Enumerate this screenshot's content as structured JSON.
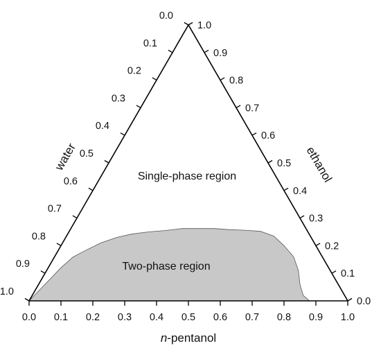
{
  "chart_data": {
    "type": "ternary",
    "axes": {
      "bottom": {
        "label": "n-pentanol",
        "label_prefix": "n",
        "label_suffix": "-pentanol",
        "ticks": [
          "0.0",
          "0.1",
          "0.2",
          "0.3",
          "0.4",
          "0.5",
          "0.6",
          "0.7",
          "0.8",
          "0.9",
          "1.0"
        ]
      },
      "left": {
        "label": "water",
        "ticks": [
          "0.0",
          "0.1",
          "0.2",
          "0.3",
          "0.4",
          "0.5",
          "0.6",
          "0.7",
          "0.8",
          "0.9",
          "1.0"
        ]
      },
      "right": {
        "label": "ethanol",
        "ticks": [
          "0.0",
          "0.1",
          "0.2",
          "0.3",
          "0.4",
          "0.5",
          "0.6",
          "0.7",
          "0.8",
          "0.9",
          "1.0"
        ]
      }
    },
    "regions": [
      {
        "label": "Single-phase region",
        "fill": "none"
      },
      {
        "label": "Two-phase region",
        "fill": "#c8c8c8"
      }
    ],
    "binodal_curve": [
      {
        "pentanol": 0.0,
        "ethanol": 0.0
      },
      {
        "pentanol": 0.02,
        "ethanol": 0.06
      },
      {
        "pentanol": 0.04,
        "ethanol": 0.12
      },
      {
        "pentanol": 0.058,
        "ethanol": 0.158
      },
      {
        "pentanol": 0.08,
        "ethanol": 0.178
      },
      {
        "pentanol": 0.12,
        "ethanol": 0.21
      },
      {
        "pentanol": 0.16,
        "ethanol": 0.23
      },
      {
        "pentanol": 0.2,
        "ethanol": 0.242
      },
      {
        "pentanol": 0.25,
        "ethanol": 0.25
      },
      {
        "pentanol": 0.3,
        "ethanol": 0.255
      },
      {
        "pentanol": 0.35,
        "ethanol": 0.262
      },
      {
        "pentanol": 0.4,
        "ethanol": 0.262
      },
      {
        "pentanol": 0.45,
        "ethanol": 0.262
      },
      {
        "pentanol": 0.5,
        "ethanol": 0.258
      },
      {
        "pentanol": 0.55,
        "ethanol": 0.256
      },
      {
        "pentanol": 0.6,
        "ethanol": 0.252
      },
      {
        "pentanol": 0.65,
        "ethanol": 0.235
      },
      {
        "pentanol": 0.7,
        "ethanol": 0.2
      },
      {
        "pentanol": 0.75,
        "ethanol": 0.16
      },
      {
        "pentanol": 0.79,
        "ethanol": 0.11
      },
      {
        "pentanol": 0.82,
        "ethanol": 0.06
      },
      {
        "pentanol": 0.85,
        "ethanol": 0.02
      },
      {
        "pentanol": 0.88,
        "ethanol": 0.0
      }
    ],
    "grid": false,
    "colors": {
      "curve_fill": "#c8c8c8",
      "curve_stroke": "#555555",
      "axis": "#000000"
    }
  }
}
